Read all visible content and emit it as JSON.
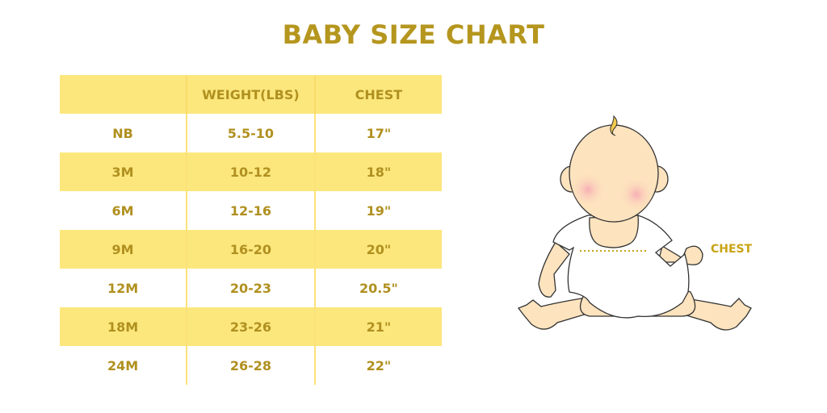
{
  "title": "BABY SIZE CHART",
  "table": {
    "headers": [
      "",
      "WEIGHT(LBS)",
      "CHEST"
    ],
    "rows": [
      [
        "NB",
        "5.5-10",
        "17\""
      ],
      [
        "3M",
        "10-12",
        "18\""
      ],
      [
        "6M",
        "12-16",
        "19\""
      ],
      [
        "9M",
        "16-20",
        "20\""
      ],
      [
        "12M",
        "20-23",
        "20.5\""
      ],
      [
        "18M",
        "23-26",
        "21\""
      ],
      [
        "24M",
        "26-28",
        "22\""
      ]
    ]
  },
  "illustration": {
    "chest_label": "CHEST"
  },
  "colors": {
    "accent_text": "#B5961E",
    "row_highlight": "#FCE77D",
    "skin": "#FDE3BE"
  }
}
